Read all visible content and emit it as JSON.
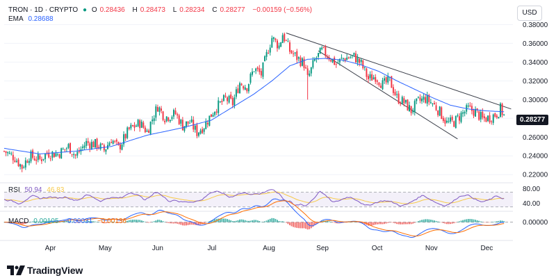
{
  "legend": {
    "symbol": "TRON · 1D · CRYPTO",
    "open_label": "O",
    "open": "0.28436",
    "high_label": "H",
    "high": "0.28473",
    "low_label": "L",
    "low": "0.28234",
    "close_label": "C",
    "close": "0.28277",
    "change": "−0.00159 (−0.56%)",
    "ema_label": "EMA",
    "ema_value": "0.28688",
    "rsi_label": "RSI",
    "rsi_value": "50.94",
    "rsi_ma": "46.83",
    "macd_label": "MACD",
    "macd_hist": "0.00105",
    "macd_line": "−0.00031",
    "macd_signal": "−0.00136"
  },
  "currency": "USD",
  "last_price_tag": "0.28277",
  "brand": "TradingView",
  "colors": {
    "up": "#089981",
    "down": "#f23645",
    "ema": "#2962ff",
    "rsi": "#7e57c2",
    "signal": "#ff6d00",
    "trend": "#363a45"
  },
  "chart_data": {
    "type": "candlestick",
    "price_axis": {
      "ticks": [
        "0.38000",
        "0.36000",
        "0.34000",
        "0.32000",
        "0.30000",
        "0.28000",
        "0.26000",
        "0.24000",
        "0.22000"
      ],
      "range": [
        0.212,
        0.384
      ]
    },
    "rsi_axis": {
      "ticks": [
        "80.00",
        "40.00"
      ],
      "range": [
        22,
        92
      ],
      "band": [
        30,
        70
      ]
    },
    "macd_axis": {
      "ticks": [
        "0.00000"
      ],
      "range": [
        -0.012,
        0.006
      ]
    },
    "time_axis": [
      "Apr",
      "May",
      "Jun",
      "Jul",
      "Aug",
      "Sep",
      "Oct",
      "Nov",
      "Dec"
    ],
    "price_path": [
      [
        0,
        0.245
      ],
      [
        6,
        0.238
      ],
      [
        10,
        0.228
      ],
      [
        14,
        0.24
      ],
      [
        20,
        0.236
      ],
      [
        24,
        0.243
      ],
      [
        30,
        0.242
      ],
      [
        36,
        0.25
      ],
      [
        40,
        0.24
      ],
      [
        46,
        0.254
      ],
      [
        52,
        0.252
      ],
      [
        56,
        0.246
      ],
      [
        60,
        0.258
      ],
      [
        64,
        0.248
      ],
      [
        70,
        0.268
      ],
      [
        76,
        0.275
      ],
      [
        80,
        0.266
      ],
      [
        86,
        0.293
      ],
      [
        90,
        0.281
      ],
      [
        96,
        0.285
      ],
      [
        100,
        0.272
      ],
      [
        104,
        0.276
      ],
      [
        108,
        0.265
      ],
      [
        112,
        0.272
      ],
      [
        118,
        0.29
      ],
      [
        124,
        0.301
      ],
      [
        128,
        0.296
      ],
      [
        132,
        0.318
      ],
      [
        136,
        0.314
      ],
      [
        140,
        0.333
      ],
      [
        144,
        0.327
      ],
      [
        148,
        0.354
      ],
      [
        150,
        0.366
      ],
      [
        154,
        0.357
      ],
      [
        156,
        0.37
      ],
      [
        160,
        0.352
      ],
      [
        164,
        0.345
      ],
      [
        168,
        0.338
      ],
      [
        170,
        0.322
      ],
      [
        174,
        0.342
      ],
      [
        178,
        0.352
      ],
      [
        182,
        0.346
      ],
      [
        186,
        0.338
      ],
      [
        190,
        0.344
      ],
      [
        196,
        0.346
      ],
      [
        200,
        0.338
      ],
      [
        204,
        0.322
      ],
      [
        208,
        0.325
      ],
      [
        212,
        0.316
      ],
      [
        216,
        0.32
      ],
      [
        220,
        0.302
      ],
      [
        224,
        0.297
      ],
      [
        228,
        0.288
      ],
      [
        232,
        0.298
      ],
      [
        236,
        0.301
      ],
      [
        240,
        0.296
      ],
      [
        244,
        0.287
      ],
      [
        248,
        0.275
      ],
      [
        252,
        0.276
      ],
      [
        256,
        0.284
      ],
      [
        260,
        0.29
      ],
      [
        264,
        0.287
      ],
      [
        268,
        0.279
      ],
      [
        272,
        0.281
      ],
      [
        276,
        0.285
      ],
      [
        278,
        0.29
      ],
      [
        280,
        0.283
      ]
    ],
    "ema_path": [
      [
        0,
        0.248
      ],
      [
        20,
        0.242
      ],
      [
        40,
        0.245
      ],
      [
        60,
        0.25
      ],
      [
        80,
        0.262
      ],
      [
        100,
        0.27
      ],
      [
        116,
        0.278
      ],
      [
        128,
        0.292
      ],
      [
        140,
        0.306
      ],
      [
        150,
        0.32
      ],
      [
        160,
        0.336
      ],
      [
        170,
        0.343
      ],
      [
        180,
        0.344
      ],
      [
        190,
        0.342
      ],
      [
        200,
        0.337
      ],
      [
        210,
        0.33
      ],
      [
        220,
        0.32
      ],
      [
        230,
        0.311
      ],
      [
        240,
        0.302
      ],
      [
        250,
        0.294
      ],
      [
        260,
        0.29
      ],
      [
        270,
        0.288
      ],
      [
        280,
        0.287
      ]
    ],
    "trend_channel": {
      "upper": [
        [
          158,
          0.371
        ],
        [
          284,
          0.29
        ]
      ],
      "lower": [
        [
          176,
          0.352
        ],
        [
          254,
          0.258
        ]
      ]
    }
  }
}
